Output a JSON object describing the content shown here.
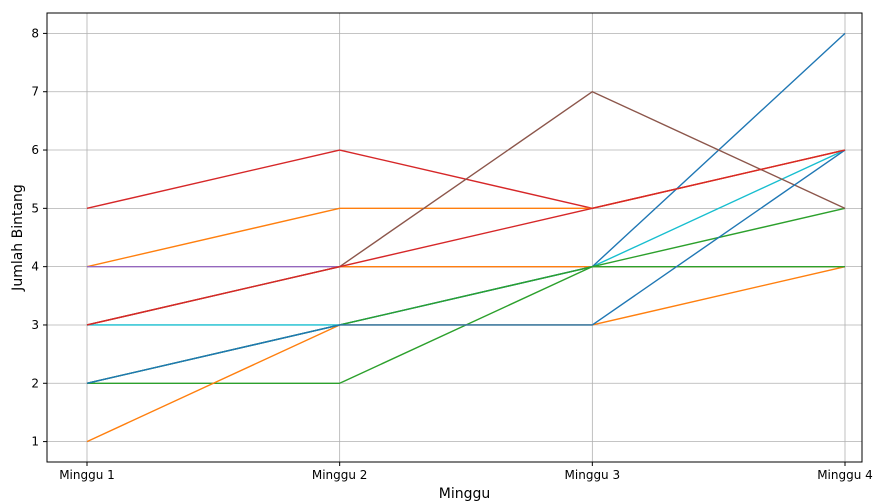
{
  "chart_data": {
    "type": "line",
    "title": "",
    "xlabel": "Minggu",
    "ylabel": "Jumlah Bintang",
    "categories": [
      "Minggu 1",
      "Minggu 2",
      "Minggu 3",
      "Minggu 4"
    ],
    "y_ticks": [
      1,
      2,
      3,
      4,
      5,
      6,
      7,
      8
    ],
    "ylim": [
      0.65,
      8.35
    ],
    "grid": true,
    "series": [
      {
        "color": "#d62728",
        "values": [
          5,
          6,
          5,
          6
        ]
      },
      {
        "color": "#ff7f0e",
        "values": [
          4,
          5,
          5,
          6
        ]
      },
      {
        "color": "#9467bd",
        "values": [
          4,
          4,
          4,
          4
        ]
      },
      {
        "color": "#ff7f0e",
        "values": [
          3,
          4,
          4,
          4
        ]
      },
      {
        "color": "#17becf",
        "values": [
          3,
          3,
          4,
          6
        ]
      },
      {
        "color": "#1f77b4",
        "values": [
          2,
          3,
          4,
          8
        ]
      },
      {
        "color": "#2ca02c",
        "values": [
          2,
          2,
          4,
          5
        ]
      },
      {
        "color": "#ff7f0e",
        "values": [
          1,
          3,
          3,
          4
        ]
      },
      {
        "color": "#8c564b",
        "values": [
          3,
          4,
          7,
          5
        ]
      },
      {
        "color": "#2ca02c",
        "values": [
          2,
          3,
          4,
          4
        ]
      },
      {
        "color": "#1f77b4",
        "values": [
          2,
          3,
          3,
          6
        ]
      },
      {
        "color": "#d62728",
        "values": [
          3,
          4,
          5,
          6
        ]
      }
    ]
  }
}
